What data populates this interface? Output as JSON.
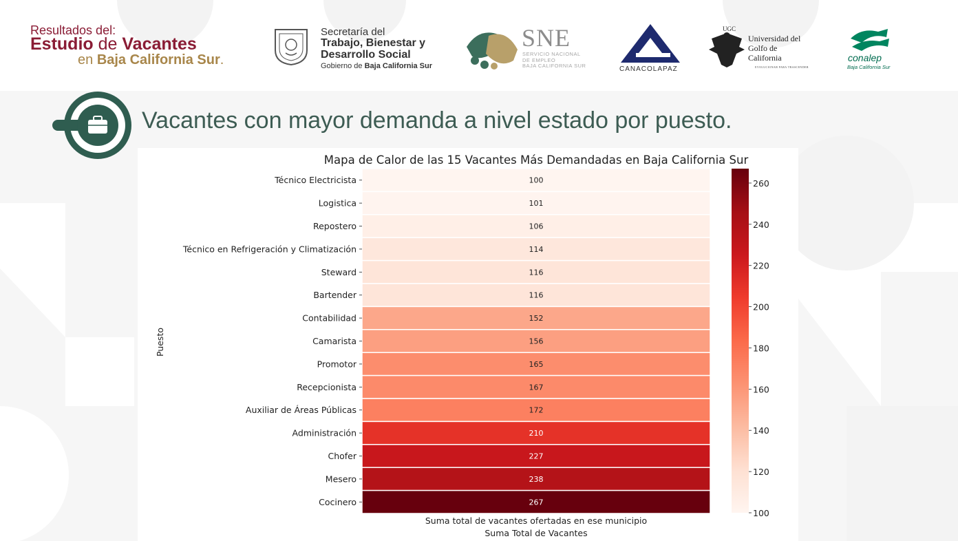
{
  "header": {
    "brand": {
      "line1": "Resultados del:",
      "line2_a": "Estudio",
      "line2_b": "de",
      "line2_c": "Vacantes",
      "line3_a": "en",
      "line3_b": "Baja California Sur",
      "line3_c": "."
    },
    "secretaria": {
      "line1": "Secretaría del",
      "line2": "Trabajo, Bienestar y",
      "line3": "Desarrollo Social",
      "line4_a": "Gobierno de",
      "line4_b": "Baja California Sur"
    },
    "sne": {
      "title": "SNE",
      "sub1": "SERVICIO NACIONAL",
      "sub2": "DE EMPLEO",
      "sub3": "BAJA CALIFORNIA SUR"
    },
    "canaco": {
      "label": "CANACOLAPAZ"
    },
    "ugc": {
      "line1": "Universidad del",
      "line2": "Golfo de",
      "line3": "California",
      "slogan": "EVOLUCIONAR PARA TRASCENDER",
      "monogram": "UGC"
    },
    "conalep": {
      "name": "conalep",
      "sub": "Baja California Sur"
    }
  },
  "section": {
    "title": "Vacantes con mayor demanda a nivel estado por puesto.",
    "icon": "briefcase-icon"
  },
  "colors": {
    "brand_red": "#8a1c35",
    "brand_gold": "#a8864a",
    "heading_green": "#3d5c53",
    "icon_green": "#2f5d50"
  },
  "chart_data": {
    "type": "heatmap",
    "title": "Mapa de Calor de las 15 Vacantes Más Demandadas en Baja California Sur",
    "xlabel": "Suma Total de Vacantes",
    "ylabel": "Puesto",
    "column_label": "Suma total de vacantes ofertadas en ese municipio",
    "categories": [
      "Técnico Electricista",
      "Logistica",
      "Repostero",
      "Técnico en Refrigeración y Climatización",
      "Steward",
      "Bartender",
      "Contabilidad",
      "Camarista",
      "Promotor",
      "Recepcionista",
      "Auxiliar de Áreas Públicas",
      "Administración",
      "Chofer",
      "Mesero",
      "Cocinero"
    ],
    "values": [
      100,
      101,
      106,
      114,
      116,
      116,
      152,
      156,
      165,
      167,
      172,
      210,
      227,
      238,
      267
    ],
    "colorscale": "Reds",
    "colorbar": {
      "ticks": [
        100,
        120,
        140,
        160,
        180,
        200,
        220,
        240,
        260
      ],
      "range": [
        100,
        267
      ]
    }
  }
}
